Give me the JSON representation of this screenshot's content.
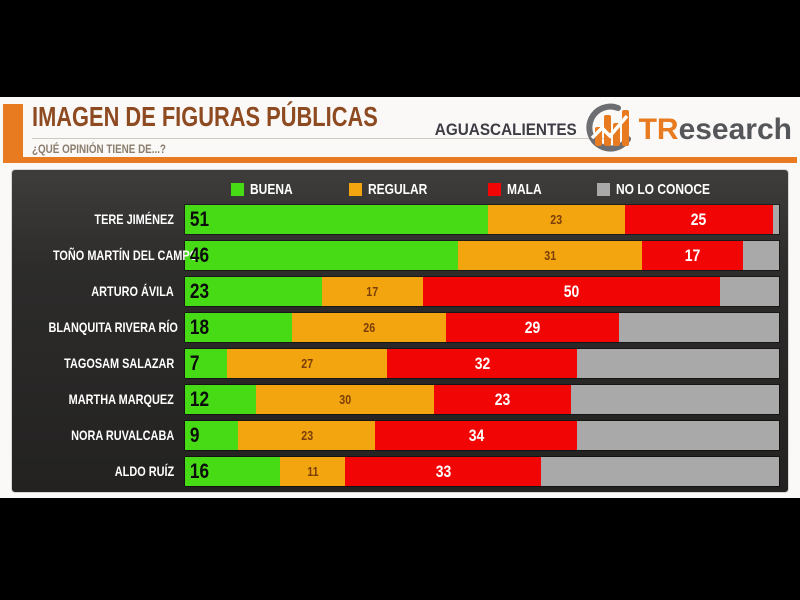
{
  "header": {
    "title": "IMAGEN DE FIGURAS PÚBLICAS",
    "subtitle": "¿QUÉ OPINIÓN TIENE DE...?",
    "region": "AGUASCALIENTES",
    "brand_prefix": "TR",
    "brand_suffix": "esearch"
  },
  "colors": {
    "accent_orange": "#E87A1F",
    "title_brown": "#8E4A21",
    "buena_green": "#47DB16",
    "regular_orange": "#F2A50E",
    "mala_red": "#F20505",
    "no_conoce_gray": "#A9A9A9",
    "panel_dark": "#2D2C2B"
  },
  "legend": [
    {
      "label": "BUENA",
      "color": "#47DB16"
    },
    {
      "label": "REGULAR",
      "color": "#F2A50E"
    },
    {
      "label": "MALA",
      "color": "#F20505"
    },
    {
      "label": "NO LO CONOCE",
      "color": "#A9A9A9"
    }
  ],
  "chart_data": {
    "type": "bar",
    "orientation": "horizontal",
    "stacked": true,
    "value_range": [
      0,
      100
    ],
    "title": "IMAGEN DE FIGURAS PÚBLICAS",
    "subtitle": "¿QUÉ OPINIÓN TIENE DE...?",
    "legend_position": "top",
    "categories": [
      "TERE JIMÉNEZ",
      "TOÑO MARTÍN DEL CAMPO",
      "ARTURO ÁVILA",
      "BLANQUITA RIVERA RÍO",
      "TAGOSAM SALAZAR",
      "MARTHA MARQUEZ",
      "NORA RUVALCABA",
      "ALDO RUÍZ"
    ],
    "series": [
      {
        "name": "BUENA",
        "color": "#47DB16",
        "values": [
          51,
          46,
          23,
          18,
          7,
          12,
          9,
          16
        ]
      },
      {
        "name": "REGULAR",
        "color": "#F2A50E",
        "values": [
          23,
          31,
          17,
          26,
          27,
          30,
          23,
          11
        ]
      },
      {
        "name": "MALA",
        "color": "#F20505",
        "values": [
          25,
          17,
          50,
          29,
          32,
          23,
          34,
          33
        ]
      },
      {
        "name": "NO LO CONOCE",
        "color": "#A9A9A9",
        "values": [
          1,
          6,
          10,
          27,
          34,
          35,
          34,
          40
        ],
        "value_labels_shown": false
      }
    ]
  }
}
